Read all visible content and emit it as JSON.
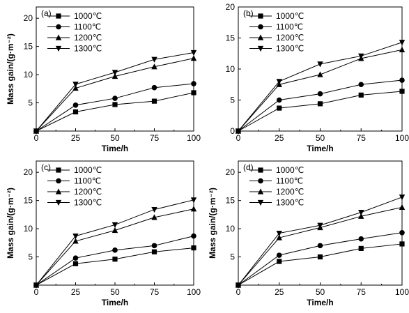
{
  "chart_data": [
    {
      "type": "line",
      "panel_label": "(a)",
      "xlabel": "Time/h",
      "ylabel": "Mass gain/(g·m⁻²)",
      "xlim": [
        0,
        100
      ],
      "ylim": [
        0,
        22
      ],
      "xticks": [
        "0",
        "25",
        "50",
        "75",
        "100"
      ],
      "yticks": [
        "5",
        "10",
        "15",
        "20"
      ],
      "ytick_values": [
        5,
        10,
        15,
        20
      ],
      "x": [
        0,
        25,
        50,
        75,
        100
      ],
      "legend_position": "top-left",
      "grid": false,
      "series": [
        {
          "name": "1000℃",
          "marker": "square",
          "values": [
            0,
            3.4,
            4.7,
            5.3,
            6.8
          ]
        },
        {
          "name": "1100℃",
          "marker": "circle",
          "values": [
            0,
            4.6,
            5.8,
            7.7,
            8.4
          ]
        },
        {
          "name": "1200℃",
          "marker": "triangle-up",
          "values": [
            0,
            7.6,
            9.7,
            11.4,
            12.9
          ]
        },
        {
          "name": "1300℃",
          "marker": "triangle-down",
          "values": [
            0,
            8.3,
            10.4,
            12.7,
            13.9
          ]
        }
      ]
    },
    {
      "type": "line",
      "panel_label": "(b)",
      "xlabel": "Time/h",
      "ylabel": "",
      "xlim": [
        0,
        100
      ],
      "ylim": [
        0,
        20
      ],
      "xticks": [
        "0",
        "25",
        "50",
        "75",
        "100"
      ],
      "yticks": [
        "0",
        "5",
        "10",
        "15",
        "20"
      ],
      "ytick_values": [
        0,
        5,
        10,
        15,
        20
      ],
      "x": [
        0,
        25,
        50,
        75,
        100
      ],
      "legend_position": "top-left",
      "grid": false,
      "series": [
        {
          "name": "1000℃",
          "marker": "square",
          "values": [
            0,
            3.7,
            4.4,
            5.8,
            6.4
          ]
        },
        {
          "name": "1100℃",
          "marker": "circle",
          "values": [
            0,
            5.0,
            6.0,
            7.5,
            8.2
          ]
        },
        {
          "name": "1200℃",
          "marker": "triangle-up",
          "values": [
            0,
            7.5,
            9.1,
            11.7,
            13.1
          ]
        },
        {
          "name": "1300℃",
          "marker": "triangle-down",
          "values": [
            0,
            8.0,
            10.8,
            12.1,
            14.3
          ]
        }
      ]
    },
    {
      "type": "line",
      "panel_label": "(c)",
      "xlabel": "Time/h",
      "ylabel": "Mass gain/(g·m⁻²)",
      "xlim": [
        0,
        100
      ],
      "ylim": [
        0,
        22
      ],
      "xticks": [
        "0",
        "25",
        "50",
        "75",
        "100"
      ],
      "yticks": [
        "5",
        "10",
        "15",
        "20"
      ],
      "ytick_values": [
        5,
        10,
        15,
        20
      ],
      "x": [
        0,
        25,
        50,
        75,
        100
      ],
      "legend_position": "top-left",
      "grid": false,
      "series": [
        {
          "name": "1000℃",
          "marker": "square",
          "values": [
            0,
            3.8,
            4.6,
            5.9,
            6.6
          ]
        },
        {
          "name": "1100℃",
          "marker": "circle",
          "values": [
            0,
            4.8,
            6.2,
            7.0,
            8.7
          ]
        },
        {
          "name": "1200℃",
          "marker": "triangle-up",
          "values": [
            0,
            7.8,
            9.7,
            12.0,
            13.5
          ]
        },
        {
          "name": "1300℃",
          "marker": "triangle-down",
          "values": [
            0,
            8.7,
            10.7,
            13.4,
            15.1
          ]
        }
      ]
    },
    {
      "type": "line",
      "panel_label": "(d)",
      "xlabel": "Time/h",
      "ylabel": "Mass gain/(g·m⁻²)",
      "xlim": [
        0,
        100
      ],
      "ylim": [
        0,
        22
      ],
      "xticks": [
        "0",
        "25",
        "50",
        "75",
        "100"
      ],
      "yticks": [
        "5",
        "10",
        "15",
        "20"
      ],
      "ytick_values": [
        5,
        10,
        15,
        20
      ],
      "x": [
        0,
        25,
        50,
        75,
        100
      ],
      "legend_position": "top-left",
      "grid": false,
      "series": [
        {
          "name": "1000℃",
          "marker": "square",
          "values": [
            0,
            4.2,
            5.0,
            6.5,
            7.3
          ]
        },
        {
          "name": "1100℃",
          "marker": "circle",
          "values": [
            0,
            5.3,
            7.0,
            8.2,
            9.3
          ]
        },
        {
          "name": "1200℃",
          "marker": "triangle-up",
          "values": [
            0,
            8.4,
            10.2,
            12.2,
            13.8
          ]
        },
        {
          "name": "1300℃",
          "marker": "triangle-down",
          "values": [
            0,
            9.2,
            10.6,
            12.9,
            15.6
          ]
        }
      ]
    }
  ]
}
